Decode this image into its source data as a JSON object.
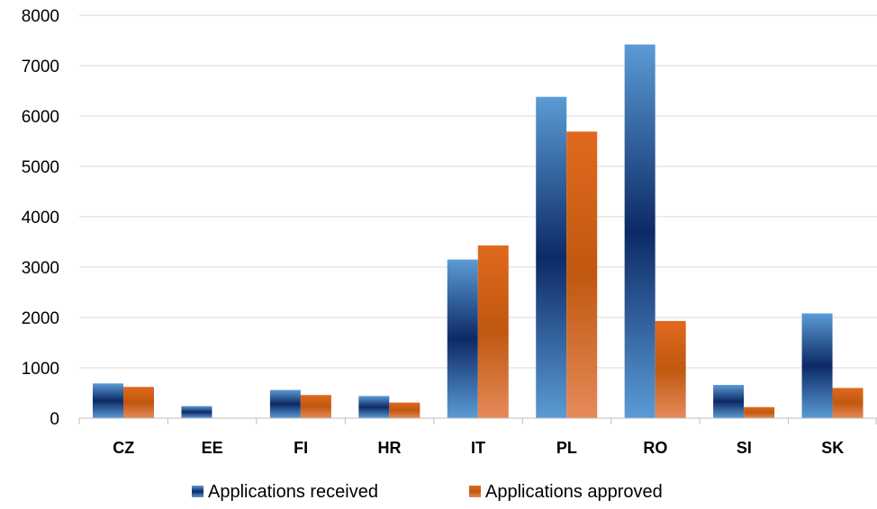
{
  "chart_data": {
    "type": "bar",
    "categories": [
      "CZ",
      "EE",
      "FI",
      "HR",
      "IT",
      "PL",
      "RO",
      "SI",
      "SK"
    ],
    "series": [
      {
        "name": "Applications received",
        "values": [
          690,
          240,
          560,
          440,
          3150,
          6380,
          7420,
          660,
          2080
        ]
      },
      {
        "name": "Applications approved",
        "values": [
          620,
          0,
          460,
          310,
          3430,
          5690,
          1930,
          220,
          600
        ]
      }
    ],
    "ylim": [
      0,
      8000
    ],
    "yticks": [
      0,
      1000,
      2000,
      3000,
      4000,
      5000,
      6000,
      7000,
      8000
    ],
    "grid": true,
    "legend": "bottom",
    "colors": {
      "received_light": "#5b9bd5",
      "received_dark": "#0c2a66",
      "approved_light": "#e07a45",
      "approved_dark": "#c65a10",
      "gridline": "#d9d9d9",
      "axis": "#bfbfbf"
    }
  }
}
